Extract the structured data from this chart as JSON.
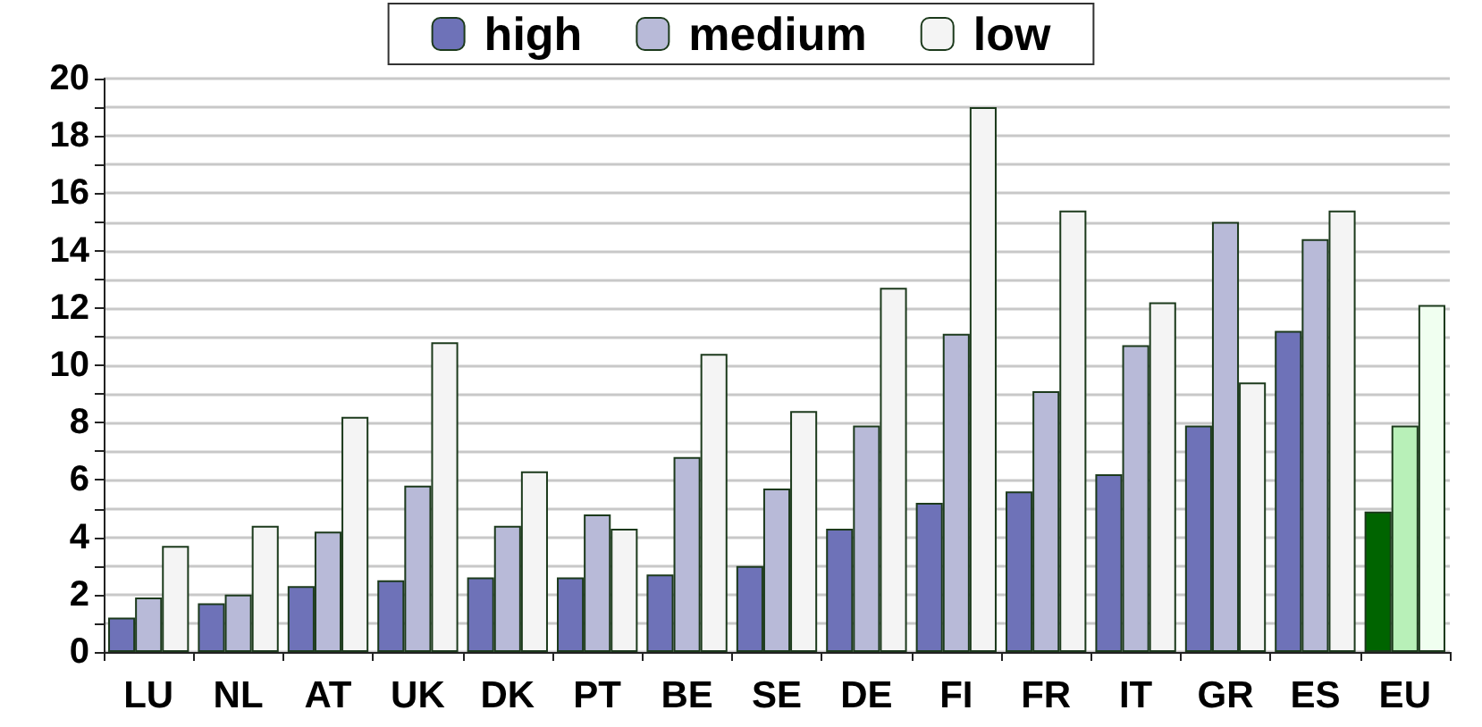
{
  "chart_data": {
    "type": "bar",
    "categories": [
      "LU",
      "NL",
      "AT",
      "UK",
      "DK",
      "PT",
      "BE",
      "SE",
      "DE",
      "FI",
      "FR",
      "IT",
      "GR",
      "ES",
      "EU"
    ],
    "series": [
      {
        "name": "high",
        "color": "#6e72b8",
        "colors": [
          "#6e72b8",
          "#6e72b8",
          "#6e72b8",
          "#6e72b8",
          "#6e72b8",
          "#6e72b8",
          "#6e72b8",
          "#6e72b8",
          "#6e72b8",
          "#6e72b8",
          "#6e72b8",
          "#6e72b8",
          "#6e72b8",
          "#6e72b8",
          "#006400"
        ],
        "values": [
          1.2,
          1.7,
          2.3,
          2.5,
          2.6,
          2.6,
          2.7,
          3.0,
          4.3,
          5.2,
          5.6,
          6.2,
          7.9,
          11.2,
          4.9
        ]
      },
      {
        "name": "medium",
        "color": "#b8bad8",
        "colors": [
          "#b8bad8",
          "#b8bad8",
          "#b8bad8",
          "#b8bad8",
          "#b8bad8",
          "#b8bad8",
          "#b8bad8",
          "#b8bad8",
          "#b8bad8",
          "#b8bad8",
          "#b8bad8",
          "#b8bad8",
          "#b8bad8",
          "#b8bad8",
          "#b8f0b8"
        ],
        "values": [
          1.9,
          2.0,
          4.2,
          5.8,
          4.4,
          4.8,
          6.8,
          5.7,
          7.9,
          11.1,
          9.1,
          10.7,
          15.0,
          14.4,
          7.9
        ]
      },
      {
        "name": "low",
        "color": "#f4f4f4",
        "colors": [
          "#f4f4f4",
          "#f4f4f4",
          "#f4f4f4",
          "#f4f4f4",
          "#f4f4f4",
          "#f4f4f4",
          "#f4f4f4",
          "#f4f4f4",
          "#f4f4f4",
          "#f4f4f4",
          "#f4f4f4",
          "#f4f4f4",
          "#f4f4f4",
          "#f4f4f4",
          "#f0fff0"
        ],
        "values": [
          3.7,
          4.4,
          8.2,
          10.8,
          6.3,
          4.3,
          10.4,
          8.4,
          12.7,
          19.0,
          15.4,
          12.2,
          9.4,
          15.4,
          12.1
        ]
      }
    ],
    "ylim": [
      0,
      20
    ],
    "yticks": [
      0,
      {
        "value": 1,
        "label": null
      },
      2,
      {
        "value": 3,
        "label": null
      },
      4,
      {
        "value": 5,
        "label": null
      },
      6,
      {
        "value": 7,
        "label": null
      },
      8,
      {
        "value": 9,
        "label": null
      },
      10,
      {
        "value": 11,
        "label": null
      },
      12,
      {
        "value": 13,
        "label": null
      },
      14,
      {
        "value": 15,
        "label": null
      },
      16,
      {
        "value": 17,
        "label": null
      },
      18,
      {
        "value": 19,
        "label": null
      },
      20
    ],
    "grid": "y",
    "legend": "top"
  }
}
